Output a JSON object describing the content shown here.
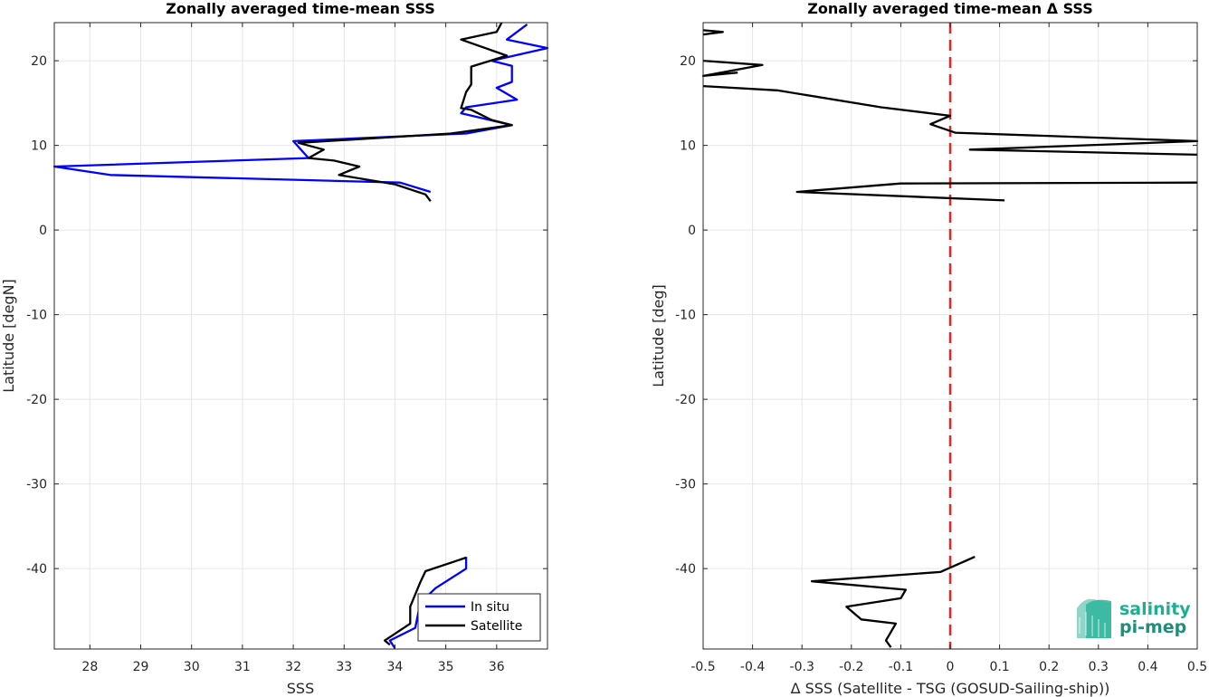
{
  "chart_data": [
    {
      "type": "line",
      "title": "Zonally averaged time-mean SSS",
      "xlabel": "SSS",
      "ylabel": "Latitude [degN]",
      "xlim": [
        27.3,
        37.0
      ],
      "ylim": [
        -49.5,
        24.5
      ],
      "xticks": [
        28,
        29,
        30,
        31,
        32,
        33,
        34,
        35,
        36
      ],
      "yticks": [
        -40,
        -30,
        -20,
        -10,
        0,
        10,
        20
      ],
      "grid": true,
      "legend": "bottom-right",
      "series": [
        {
          "name": "In situ",
          "color": "#0000ff",
          "segments": [
            [
              [
                36.6,
                24.3
              ],
              [
                36.2,
                22.5
              ],
              [
                37.0,
                21.5
              ],
              [
                35.9,
                20.0
              ],
              [
                36.3,
                19.4
              ],
              [
                36.3,
                17.5
              ],
              [
                36.0,
                16.8
              ],
              [
                36.4,
                15.4
              ],
              [
                35.4,
                14.5
              ],
              [
                35.3,
                13.8
              ],
              [
                36.3,
                12.4
              ],
              [
                35.4,
                11.4
              ],
              [
                32.0,
                10.5
              ],
              [
                32.3,
                8.5
              ],
              [
                27.3,
                7.5
              ],
              [
                28.4,
                6.5
              ],
              [
                34.1,
                5.6
              ],
              [
                34.7,
                4.5
              ]
            ],
            [
              [
                35.4,
                -38.6
              ],
              [
                35.4,
                -40.0
              ],
              [
                34.8,
                -42.3
              ],
              [
                34.5,
                -44.0
              ],
              [
                34.4,
                -47.0
              ],
              [
                33.9,
                -48.5
              ],
              [
                34.0,
                -49.4
              ]
            ]
          ]
        },
        {
          "name": "Satellite",
          "color": "#000000",
          "segments": [
            [
              [
                36.1,
                24.5
              ],
              [
                36.0,
                23.4
              ],
              [
                35.3,
                22.5
              ],
              [
                36.2,
                20.6
              ],
              [
                35.5,
                19.3
              ],
              [
                35.5,
                17.2
              ],
              [
                35.4,
                16.3
              ],
              [
                35.3,
                14.4
              ],
              [
                35.5,
                14.2
              ],
              [
                35.9,
                13.0
              ],
              [
                36.3,
                12.4
              ],
              [
                35.1,
                11.4
              ],
              [
                32.1,
                10.3
              ],
              [
                32.6,
                9.5
              ],
              [
                32.3,
                8.5
              ],
              [
                32.8,
                8.2
              ],
              [
                33.3,
                7.5
              ],
              [
                32.9,
                6.5
              ],
              [
                34.0,
                5.4
              ],
              [
                34.6,
                4.2
              ],
              [
                34.7,
                3.4
              ]
            ],
            [
              [
                35.4,
                -38.7
              ],
              [
                34.6,
                -40.3
              ],
              [
                34.5,
                -41.6
              ],
              [
                34.3,
                -44.5
              ],
              [
                34.3,
                -46.5
              ],
              [
                33.8,
                -48.5
              ],
              [
                33.9,
                -49.0
              ]
            ]
          ]
        }
      ]
    },
    {
      "type": "line",
      "title": "Zonally averaged time-mean Δ SSS",
      "xlabel": "Δ SSS (Satellite - TSG (GOSUD-Sailing-ship))",
      "ylabel": "Latitude [deg]",
      "xlim": [
        -0.5,
        0.5
      ],
      "ylim": [
        -49.5,
        24.5
      ],
      "xticks": [
        -0.5,
        -0.4,
        -0.3,
        -0.2,
        -0.1,
        0,
        0.1,
        0.2,
        0.3,
        0.4,
        0.5
      ],
      "xtick_labels": [
        "-0.5",
        "-0.4",
        "-0.3",
        "-0.2",
        "-0.1",
        "0",
        "0.1",
        "0.2",
        "0.3",
        "0.4",
        "0.5"
      ],
      "yticks": [
        -40,
        -30,
        -20,
        -10,
        0,
        10,
        20
      ],
      "grid": true,
      "zero_line": {
        "x": 0,
        "color": "#e8251f",
        "style": "dashed"
      },
      "series": [
        {
          "color": "#000000",
          "segments": [
            [
              [
                -0.5,
                23.6
              ],
              [
                -0.46,
                23.4
              ],
              [
                -0.5,
                23.1
              ]
            ],
            [
              [
                -0.5,
                20.0
              ],
              [
                -0.38,
                19.5
              ],
              [
                -0.5,
                18.2
              ],
              [
                -0.43,
                18.6
              ]
            ],
            [
              [
                -0.5,
                17.0
              ],
              [
                -0.35,
                16.5
              ],
              [
                -0.14,
                14.5
              ],
              [
                0.0,
                13.5
              ],
              [
                -0.04,
                12.5
              ],
              [
                0.01,
                11.5
              ],
              [
                0.5,
                10.5
              ],
              [
                0.04,
                9.5
              ],
              [
                0.5,
                8.9
              ]
            ],
            [
              [
                0.5,
                5.6
              ],
              [
                -0.1,
                5.5
              ],
              [
                -0.31,
                4.5
              ],
              [
                0.11,
                3.5
              ]
            ],
            [
              [
                0.05,
                -38.6
              ],
              [
                -0.02,
                -40.4
              ],
              [
                -0.28,
                -41.5
              ],
              [
                -0.09,
                -42.5
              ],
              [
                -0.1,
                -43.5
              ],
              [
                -0.21,
                -44.5
              ],
              [
                -0.18,
                -46.0
              ],
              [
                -0.11,
                -46.5
              ],
              [
                -0.13,
                -48.5
              ],
              [
                -0.12,
                -49.3
              ]
            ]
          ]
        }
      ]
    }
  ],
  "legend": {
    "items": [
      "In situ",
      "Satellite"
    ]
  },
  "logo": {
    "line1": "salinity",
    "line2": "pi-mep"
  }
}
